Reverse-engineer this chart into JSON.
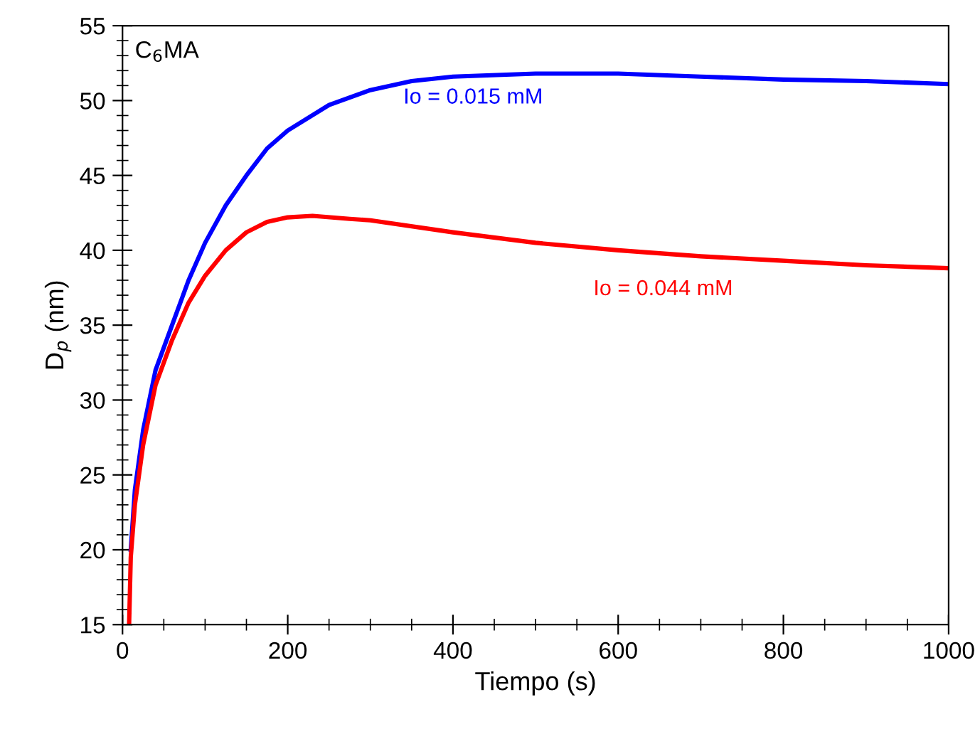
{
  "chart_data": {
    "type": "line",
    "xlabel": "Tiempo (s)",
    "ylabel": "D$_{p}$ (nm)",
    "annotations": [
      "C$_{6}$MA"
    ],
    "xlim": [
      0,
      1000
    ],
    "xticks": [
      0,
      200,
      400,
      600,
      800,
      1000
    ],
    "ylim": [
      15,
      55
    ],
    "yticks": [
      15,
      20,
      25,
      30,
      35,
      40,
      45,
      50,
      55
    ],
    "grid": false,
    "legend": false,
    "marker": "none",
    "line_style": "solid",
    "series": [
      {
        "name": "Io = 0.015 mM",
        "color": "#0000ff",
        "x": [
          10,
          15,
          25,
          40,
          60,
          80,
          100,
          125,
          150,
          175,
          200,
          250,
          300,
          350,
          400,
          500,
          600,
          700,
          800,
          900,
          1000
        ],
        "values": [
          20,
          24,
          28,
          32,
          35,
          38,
          40.5,
          43,
          45,
          46.8,
          48,
          49.7,
          50.7,
          51.3,
          51.6,
          51.8,
          51.8,
          51.6,
          51.4,
          51.3,
          51.1
        ]
      },
      {
        "name": "Io = 0.044 mM",
        "color": "#ff0000",
        "x": [
          8,
          10,
          15,
          25,
          40,
          60,
          80,
          100,
          125,
          150,
          175,
          200,
          230,
          275,
          300,
          400,
          500,
          600,
          700,
          800,
          900,
          1000
        ],
        "values": [
          15,
          19.5,
          23,
          27,
          31,
          34,
          36.5,
          38.3,
          40,
          41.2,
          41.9,
          42.2,
          42.3,
          42.1,
          42.0,
          41.2,
          40.5,
          40.0,
          39.6,
          39.3,
          39.0,
          38.8
        ]
      }
    ]
  }
}
